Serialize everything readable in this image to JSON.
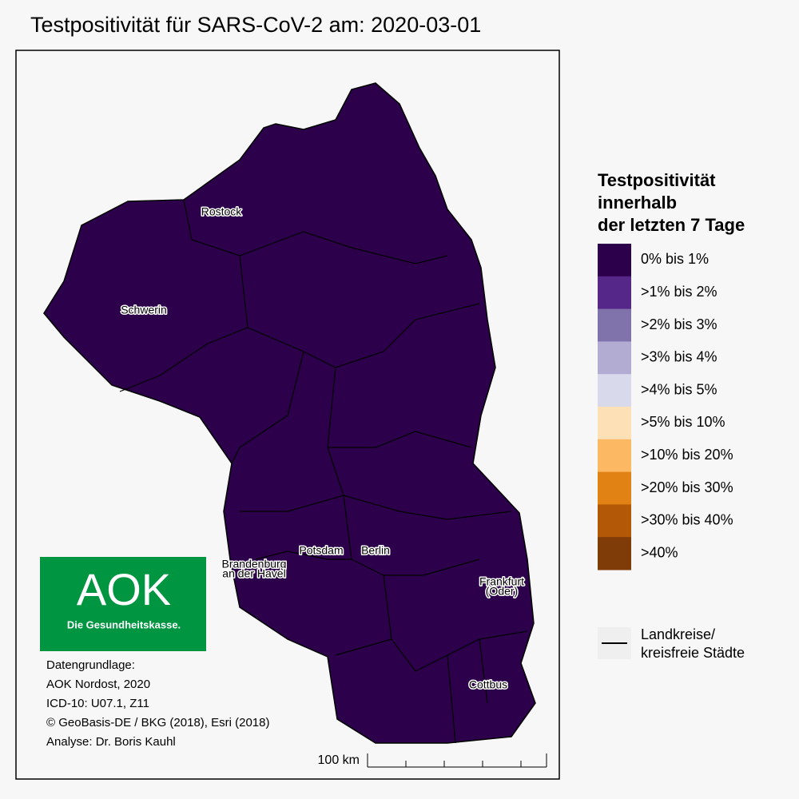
{
  "title": "Testpositivität für SARS-CoV-2 am: 2020-03-01",
  "map": {
    "cities": [
      {
        "lines": [
          "Rostock"
        ]
      },
      {
        "lines": [
          "Schwerin"
        ]
      },
      {
        "lines": [
          "Potsdam"
        ]
      },
      {
        "lines": [
          "Berlin"
        ]
      },
      {
        "lines": [
          "Brandenburg",
          "an der Havel"
        ]
      },
      {
        "lines": [
          "Frankfurt",
          "(Oder)"
        ]
      },
      {
        "lines": [
          "Cottbus"
        ]
      }
    ]
  },
  "legend": {
    "title_lines": [
      "Testpositivität",
      "innerhalb",
      "der letzten 7 Tage"
    ],
    "items": [
      {
        "label": "0% bis 1%",
        "color": "#2d004b"
      },
      {
        "label": ">1% bis 2%",
        "color": "#542788"
      },
      {
        "label": ">2% bis 3%",
        "color": "#8073ac"
      },
      {
        "label": ">3% bis 4%",
        "color": "#b2abd2"
      },
      {
        "label": ">4% bis 5%",
        "color": "#d8daeb"
      },
      {
        "label": ">5% bis 10%",
        "color": "#fee0b6"
      },
      {
        "label": ">10% bis 20%",
        "color": "#fdb863"
      },
      {
        "label": ">20% bis 30%",
        "color": "#e08214"
      },
      {
        "label": ">30% bis 40%",
        "color": "#b35806"
      },
      {
        "label": ">40%",
        "color": "#7f3b08"
      }
    ],
    "boundary_label_lines": [
      "Landkreise/",
      "kreisfreie Städte"
    ]
  },
  "logo": {
    "brand": "AOK",
    "slogan": "Die Gesundheitskasse."
  },
  "credits": [
    "Datengrundlage:",
    "AOK Nordost, 2020",
    "ICD-10: U07.1, Z11",
    "© GeoBasis-DE / BKG (2018), Esri (2018)",
    "Analyse: Dr. Boris Kauhl"
  ],
  "scale_bar": {
    "label": "100 km"
  }
}
